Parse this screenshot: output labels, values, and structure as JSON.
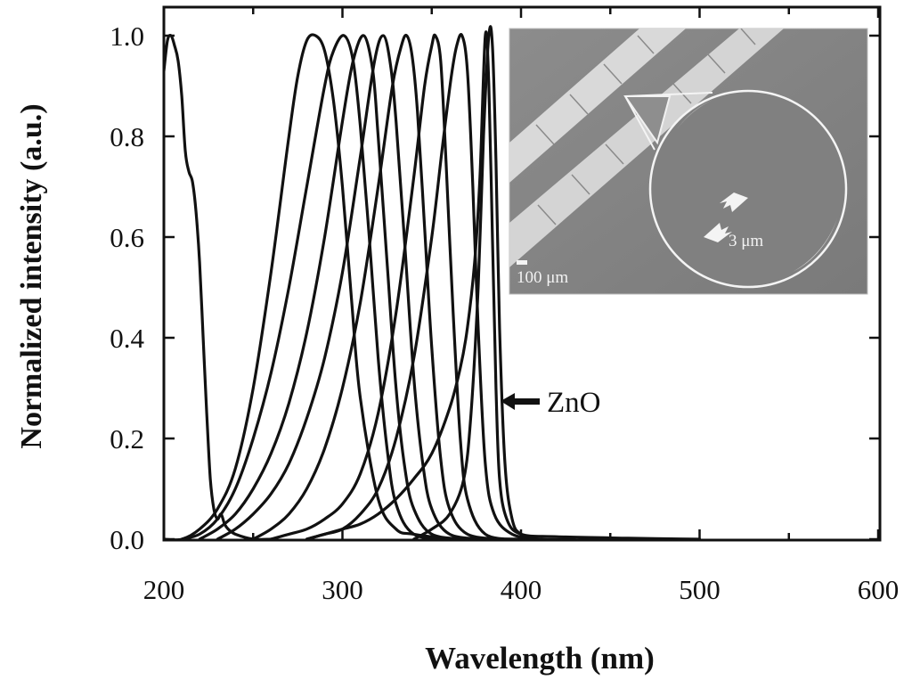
{
  "chart_data": {
    "type": "line",
    "xlabel": "Wavelength (nm)",
    "ylabel": "Normalized intensity (a.u.)",
    "xlim": [
      200,
      600
    ],
    "ylim": [
      0,
      1.0
    ],
    "x_ticks": [
      "200",
      "300",
      "400",
      "500",
      "600"
    ],
    "y_ticks": [
      "0.0",
      "0.2",
      "0.4",
      "0.6",
      "0.8",
      "1.0"
    ],
    "grid": false,
    "series": [
      {
        "peak": 204,
        "x": [
          200,
          202,
          204,
          206,
          208,
          210,
          212,
          214,
          216,
          218,
          220,
          222,
          224,
          226,
          228,
          230,
          232,
          234,
          236,
          240,
          250,
          260
        ],
        "y": [
          0.93,
          0.99,
          1.0,
          0.98,
          0.95,
          0.88,
          0.77,
          0.73,
          0.71,
          0.65,
          0.55,
          0.4,
          0.25,
          0.12,
          0.06,
          0.04,
          0.05,
          0.03,
          0.02,
          0.01,
          0.0,
          0.0
        ]
      },
      {
        "peak": 285,
        "x": [
          200,
          210,
          220,
          230,
          240,
          250,
          260,
          270,
          275,
          280,
          285,
          290,
          295,
          300,
          305,
          310,
          320,
          330,
          340,
          360
        ],
        "y": [
          0.0,
          0.0,
          0.02,
          0.06,
          0.14,
          0.3,
          0.53,
          0.8,
          0.92,
          0.99,
          1.0,
          0.97,
          0.87,
          0.7,
          0.48,
          0.28,
          0.08,
          0.02,
          0.01,
          0.0
        ]
      },
      {
        "peak": 301,
        "x": [
          210,
          220,
          230,
          240,
          250,
          260,
          270,
          280,
          290,
          295,
          301,
          306,
          310,
          315,
          320,
          325,
          330,
          340,
          360
        ],
        "y": [
          0.0,
          0.01,
          0.04,
          0.1,
          0.2,
          0.33,
          0.5,
          0.7,
          0.9,
          0.97,
          1.0,
          0.95,
          0.82,
          0.6,
          0.36,
          0.18,
          0.07,
          0.01,
          0.0
        ]
      },
      {
        "peak": 312,
        "x": [
          220,
          230,
          240,
          250,
          260,
          270,
          280,
          290,
          300,
          306,
          312,
          317,
          320,
          325,
          330,
          335,
          340,
          350,
          370
        ],
        "y": [
          0.0,
          0.02,
          0.05,
          0.1,
          0.17,
          0.27,
          0.41,
          0.6,
          0.83,
          0.95,
          1.0,
          0.93,
          0.8,
          0.55,
          0.3,
          0.14,
          0.06,
          0.01,
          0.0
        ]
      },
      {
        "peak": 323,
        "x": [
          230,
          240,
          250,
          260,
          270,
          280,
          290,
          300,
          310,
          318,
          323,
          327,
          330,
          335,
          340,
          345,
          350,
          360,
          380
        ],
        "y": [
          0.0,
          0.02,
          0.05,
          0.09,
          0.15,
          0.24,
          0.36,
          0.53,
          0.76,
          0.95,
          1.0,
          0.94,
          0.83,
          0.58,
          0.32,
          0.15,
          0.06,
          0.01,
          0.0
        ]
      },
      {
        "peak": 336,
        "x": [
          250,
          260,
          270,
          280,
          290,
          300,
          310,
          320,
          328,
          333,
          336,
          339,
          342,
          346,
          350,
          355,
          360,
          370,
          390
        ],
        "y": [
          0.0,
          0.02,
          0.05,
          0.1,
          0.18,
          0.3,
          0.47,
          0.7,
          0.9,
          0.98,
          1.0,
          0.96,
          0.85,
          0.62,
          0.38,
          0.16,
          0.06,
          0.01,
          0.0
        ]
      },
      {
        "peak": 352,
        "x": [
          260,
          270,
          280,
          290,
          300,
          310,
          320,
          330,
          340,
          346,
          350,
          352,
          355,
          358,
          362,
          366,
          370,
          380,
          400
        ],
        "y": [
          0.0,
          0.01,
          0.02,
          0.04,
          0.07,
          0.13,
          0.25,
          0.45,
          0.72,
          0.9,
          0.98,
          1.0,
          0.95,
          0.75,
          0.45,
          0.2,
          0.08,
          0.01,
          0.0
        ]
      },
      {
        "peak": 367,
        "x": [
          280,
          290,
          300,
          310,
          320,
          330,
          340,
          350,
          356,
          361,
          364,
          367,
          370,
          373,
          376,
          380,
          385,
          395,
          410
        ],
        "y": [
          0.0,
          0.01,
          0.02,
          0.05,
          0.1,
          0.2,
          0.36,
          0.6,
          0.78,
          0.92,
          0.98,
          1.0,
          0.93,
          0.7,
          0.42,
          0.15,
          0.05,
          0.01,
          0.0
        ]
      },
      {
        "peak": 380,
        "x": [
          280,
          290,
          300,
          310,
          320,
          330,
          340,
          350,
          360,
          366,
          370,
          374,
          377,
          380,
          382,
          384,
          386,
          388,
          392,
          400,
          420,
          460,
          500
        ],
        "y": [
          0.0,
          0.01,
          0.02,
          0.03,
          0.05,
          0.08,
          0.12,
          0.17,
          0.26,
          0.34,
          0.42,
          0.55,
          0.72,
          1.0,
          0.9,
          0.6,
          0.3,
          0.12,
          0.04,
          0.01,
          0.005,
          0.002,
          0.0
        ]
      },
      {
        "peak": 382,
        "x": [
          340,
          350,
          360,
          368,
          372,
          376,
          379,
          382,
          384,
          386,
          388,
          391,
          395,
          400,
          410,
          430
        ],
        "y": [
          0.0,
          0.02,
          0.05,
          0.12,
          0.25,
          0.5,
          0.8,
          1.0,
          0.98,
          0.75,
          0.42,
          0.15,
          0.04,
          0.01,
          0.0,
          0.0
        ]
      }
    ],
    "annotations": [
      {
        "text": "ZnO",
        "x": 392,
        "y": 0.28,
        "arrow": "left"
      }
    ],
    "inset": {
      "scale_bar_label": "100 μm",
      "feature_label": "3 μm"
    }
  }
}
